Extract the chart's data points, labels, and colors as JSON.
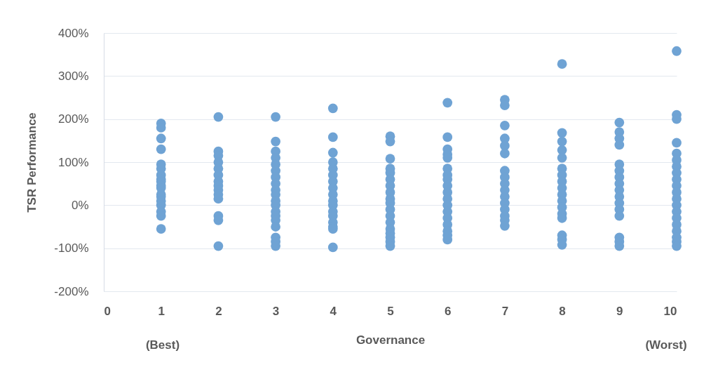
{
  "chart_data": {
    "type": "scatter",
    "xlabel": "Governance",
    "ylabel": "TSR Performance",
    "annotations": [
      "(Best)",
      "(Worst)"
    ],
    "x": [
      1,
      1,
      1,
      1,
      1,
      1,
      1,
      1,
      1,
      1,
      1,
      1,
      1,
      1,
      1,
      1,
      1,
      1,
      2,
      2,
      2,
      2,
      2,
      2,
      2,
      2,
      2,
      2,
      2,
      2,
      2,
      2,
      3,
      3,
      3,
      3,
      3,
      3,
      3,
      3,
      3,
      3,
      3,
      3,
      3,
      3,
      3,
      3,
      3,
      3,
      3,
      4,
      4,
      4,
      4,
      4,
      4,
      4,
      4,
      4,
      4,
      4,
      4,
      4,
      4,
      4,
      4,
      4,
      5,
      5,
      5,
      5,
      5,
      5,
      5,
      5,
      5,
      5,
      5,
      5,
      5,
      5,
      5,
      5,
      5,
      5,
      6,
      6,
      6,
      6,
      6,
      6,
      6,
      6,
      6,
      6,
      6,
      6,
      6,
      6,
      6,
      6,
      6,
      6,
      7,
      7,
      7,
      7,
      7,
      7,
      7,
      7,
      7,
      7,
      7,
      7,
      7,
      7,
      7,
      7,
      8,
      8,
      8,
      8,
      8,
      8,
      8,
      8,
      8,
      8,
      8,
      8,
      8,
      8,
      8,
      8,
      8,
      9,
      9,
      9,
      9,
      9,
      9,
      9,
      9,
      9,
      9,
      9,
      9,
      9,
      9,
      9,
      9,
      10,
      10,
      10,
      10,
      10,
      10,
      10,
      10,
      10,
      10,
      10,
      10,
      10,
      10,
      10,
      10,
      10,
      10,
      10,
      10
    ],
    "series": [
      {
        "color": "#6fa3d4",
        "values": [
          190,
          180,
          155,
          130,
          95,
          85,
          70,
          60,
          55,
          45,
          40,
          25,
          20,
          10,
          0,
          -15,
          -25,
          -55,
          205,
          125,
          115,
          100,
          85,
          70,
          55,
          45,
          35,
          25,
          15,
          -25,
          -35,
          -95,
          205,
          148,
          125,
          110,
          95,
          80,
          65,
          50,
          35,
          25,
          10,
          0,
          -15,
          -25,
          -35,
          -50,
          -75,
          -85,
          -95,
          225,
          158,
          122,
          100,
          85,
          70,
          55,
          40,
          25,
          10,
          0,
          -15,
          -25,
          -40,
          -50,
          -55,
          -98,
          160,
          148,
          108,
          85,
          75,
          60,
          45,
          30,
          15,
          5,
          -10,
          -25,
          -40,
          -55,
          -65,
          -75,
          -85,
          -95,
          238,
          158,
          130,
          118,
          110,
          85,
          70,
          60,
          45,
          30,
          15,
          0,
          -15,
          -30,
          -45,
          -60,
          -70,
          -80,
          245,
          232,
          185,
          155,
          138,
          120,
          80,
          65,
          50,
          35,
          20,
          5,
          -10,
          -25,
          -35,
          -48,
          328,
          168,
          148,
          128,
          110,
          85,
          70,
          55,
          40,
          25,
          10,
          -5,
          -20,
          -30,
          -70,
          -80,
          -92,
          192,
          170,
          155,
          140,
          95,
          80,
          65,
          50,
          35,
          20,
          5,
          -10,
          -25,
          -75,
          -85,
          -95,
          358,
          210,
          200,
          145,
          120,
          105,
          90,
          75,
          60,
          45,
          30,
          15,
          0,
          -15,
          -30,
          -45,
          -60,
          -75,
          -85,
          -95
        ]
      }
    ],
    "xlim": [
      0,
      10
    ],
    "xticks": [
      0,
      1,
      2,
      3,
      4,
      5,
      6,
      7,
      8,
      9,
      10
    ],
    "ylim": [
      -200,
      400
    ],
    "yticks": [
      {
        "value": -200,
        "label": "-200%"
      },
      {
        "value": -100,
        "label": "-100%"
      },
      {
        "value": 0,
        "label": "0%"
      },
      {
        "value": 100,
        "label": "100%"
      },
      {
        "value": 200,
        "label": "200%"
      },
      {
        "value": 300,
        "label": "300%"
      },
      {
        "value": 400,
        "label": "400%"
      }
    ],
    "grid": "y",
    "marker": "circle"
  }
}
